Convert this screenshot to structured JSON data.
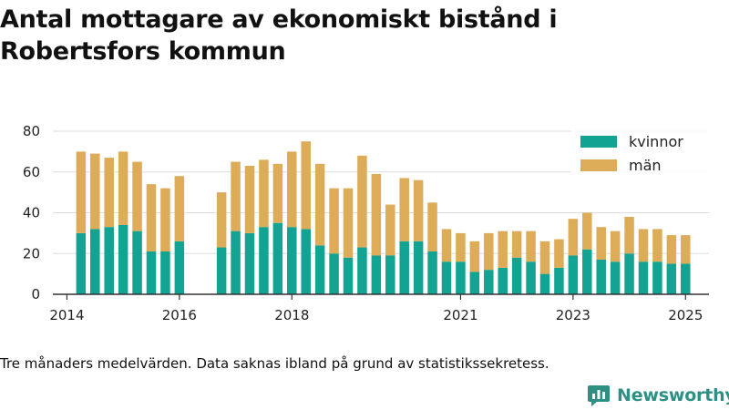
{
  "title": "Antal mottagare av ekonomiskt bistånd i Robertsfors kommun",
  "caption": "Tre månaders medelvärden. Data saknas ibland på grund av statistikssekretess.",
  "brand": {
    "name": "Newsworthy",
    "logo_icon": "newsworthy-logo-icon"
  },
  "colors": {
    "kvinnor": "#12a392",
    "man": "#dcac58",
    "grid": "#dedede",
    "axis": "#333333"
  },
  "chart_data": {
    "type": "bar",
    "stacked": true,
    "title": "Antal mottagare av ekonomiskt bistånd i Robertsfors kommun",
    "xlabel": "",
    "ylabel": "",
    "ylim": [
      0,
      80
    ],
    "yticks": [
      0,
      20,
      40,
      60,
      80
    ],
    "xlim": [
      "2013-10",
      "2025-06"
    ],
    "xticks": [
      {
        "x": "2014-01",
        "label": "2014"
      },
      {
        "x": "2016-01",
        "label": "2016"
      },
      {
        "x": "2018-01",
        "label": "2018"
      },
      {
        "x": "2021-01",
        "label": "2021"
      },
      {
        "x": "2023-01",
        "label": "2023"
      },
      {
        "x": "2025-01",
        "label": "2025"
      }
    ],
    "grid": "horizontal",
    "legend_position": "top-right",
    "x": [
      "2014-04",
      "2014-07",
      "2014-10",
      "2015-01",
      "2015-04",
      "2015-07",
      "2015-10",
      "2016-01",
      "2016-10",
      "2017-01",
      "2017-04",
      "2017-07",
      "2017-10",
      "2018-01",
      "2018-04",
      "2018-07",
      "2018-10",
      "2019-01",
      "2019-04",
      "2019-07",
      "2019-10",
      "2020-01",
      "2020-04",
      "2020-07",
      "2020-10",
      "2021-01",
      "2021-04",
      "2021-07",
      "2021-10",
      "2022-01",
      "2022-04",
      "2022-07",
      "2022-10",
      "2023-01",
      "2023-04",
      "2023-07",
      "2023-10",
      "2024-01",
      "2024-04",
      "2024-07",
      "2024-10",
      "2025-01"
    ],
    "series": [
      {
        "name": "kvinnor",
        "values": [
          30,
          32,
          33,
          34,
          31,
          21,
          21,
          26,
          23,
          31,
          30,
          33,
          35,
          33,
          32,
          24,
          20,
          18,
          23,
          19,
          19,
          26,
          26,
          21,
          16,
          16,
          11,
          12,
          13,
          18,
          16,
          10,
          13,
          19,
          22,
          17,
          16,
          20,
          16,
          16,
          15,
          15
        ]
      },
      {
        "name": "män",
        "values": [
          40,
          37,
          34,
          36,
          34,
          33,
          31,
          32,
          27,
          34,
          33,
          33,
          29,
          37,
          43,
          40,
          32,
          34,
          45,
          40,
          25,
          31,
          30,
          24,
          16,
          14,
          15,
          18,
          18,
          13,
          15,
          16,
          14,
          18,
          18,
          16,
          15,
          18,
          16,
          16,
          14,
          14
        ]
      }
    ]
  }
}
